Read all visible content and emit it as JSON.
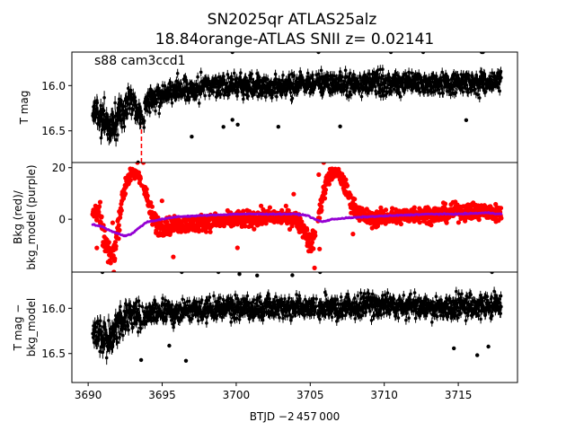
{
  "figure": {
    "title_line1": "SN2025qr  ATLAS25alz",
    "title_line2": "18.84orange-ATLAS SNII z= 0.02141",
    "annotation": "s88 cam3ccd1"
  },
  "colors": {
    "lightcurve": "#000000",
    "background": "#ff0000",
    "bkg_model": "#9400d3",
    "marker_line": "#ff0000"
  },
  "chart_data": [
    {
      "type": "scatter",
      "panel": "top",
      "ylabel": "T mag",
      "xlim": [
        3688.9,
        3719.0
      ],
      "ylim": [
        16.85,
        15.63
      ],
      "inverted_y": true,
      "yticks": [
        16.0,
        16.5
      ],
      "ytick_labels": [
        "16.0",
        "16.5"
      ],
      "vertical_marker_x": 3693.6,
      "series": [
        {
          "x": [
            3690.3,
            3690.8,
            3691.2,
            3691.6,
            3692.0,
            3692.4,
            3692.8,
            3693.2,
            3693.6,
            3694.0,
            3694.5,
            3695.0,
            3696.0,
            3697.0,
            3698.0,
            3699.0,
            3700.0,
            3701.0,
            3702.0,
            3703.0,
            3704.0,
            3705.0,
            3706.0,
            3707.0,
            3708.0,
            3709.0,
            3710.0,
            3711.0,
            3712.0,
            3713.0,
            3714.0,
            3715.0,
            3716.0,
            3717.0,
            3717.9
          ],
          "values": [
            16.25,
            16.35,
            16.4,
            16.45,
            16.35,
            16.3,
            16.15,
            16.2,
            16.35,
            16.2,
            16.15,
            16.1,
            16.05,
            16.05,
            16.0,
            16.0,
            16.0,
            16.0,
            16.0,
            16.0,
            15.98,
            15.98,
            15.98,
            15.98,
            15.98,
            15.98,
            15.98,
            15.98,
            15.98,
            15.98,
            15.98,
            15.97,
            15.97,
            15.97,
            15.97
          ],
          "spread": [
            0.25,
            0.3,
            0.3,
            0.3,
            0.3,
            0.25,
            0.25,
            0.25,
            0.25,
            0.22,
            0.2,
            0.2,
            0.2,
            0.2,
            0.2,
            0.2,
            0.2,
            0.2,
            0.2,
            0.2,
            0.2,
            0.2,
            0.2,
            0.2,
            0.2,
            0.2,
            0.2,
            0.2,
            0.2,
            0.2,
            0.2,
            0.2,
            0.2,
            0.2,
            0.2
          ]
        }
      ]
    },
    {
      "type": "scatter",
      "panel": "middle",
      "ylabel": "Bkg (red)/\nbkg_model (purple)",
      "xlim": [
        3688.9,
        3719.0
      ],
      "ylim": [
        -20.5,
        22
      ],
      "yticks": [
        0,
        20
      ],
      "ytick_labels": [
        "0",
        "20"
      ],
      "series": [
        {
          "name": "Bkg",
          "x": [
            3690.3,
            3690.7,
            3691.0,
            3691.4,
            3691.8,
            3692.2,
            3692.6,
            3693.0,
            3693.4,
            3693.8,
            3694.2,
            3694.6,
            3695.0,
            3696.0,
            3697.0,
            3698.0,
            3699.0,
            3700.0,
            3701.0,
            3702.0,
            3703.0,
            3704.0,
            3704.6,
            3705.0,
            3705.4,
            3705.8,
            3706.2,
            3706.6,
            3707.0,
            3707.4,
            3707.8,
            3708.4,
            3709.0,
            3710.0,
            3711.0,
            3712.0,
            3713.0,
            3714.0,
            3715.0,
            3716.0,
            3717.0,
            3717.9
          ],
          "values": [
            2,
            4,
            -6,
            -14,
            -12,
            5,
            15,
            18,
            17,
            12,
            3,
            -2,
            -3,
            -2,
            -2,
            -1,
            -1,
            0,
            0,
            1,
            1,
            0,
            -4,
            -10,
            -5,
            8,
            16,
            18,
            17,
            12,
            6,
            2,
            0,
            1,
            1,
            2,
            2,
            2,
            3,
            3,
            3,
            2
          ],
          "spread": [
            5,
            7,
            8,
            6,
            6,
            8,
            5,
            3,
            3,
            5,
            6,
            6,
            5,
            5,
            5,
            5,
            5,
            5,
            5,
            5,
            5,
            5,
            6,
            6,
            6,
            6,
            5,
            3,
            4,
            5,
            5,
            5,
            5,
            5,
            5,
            5,
            5,
            5,
            5,
            5,
            5,
            5
          ]
        },
        {
          "name": "bkg_model",
          "x": [
            3690.3,
            3691.0,
            3691.5,
            3692.0,
            3692.5,
            3693.0,
            3693.5,
            3694.0,
            3695.0,
            3696.0,
            3698.0,
            3700.0,
            3702.0,
            3704.0,
            3704.8,
            3705.3,
            3705.8,
            3706.5,
            3707.5,
            3709.0,
            3711.0,
            3713.0,
            3715.0,
            3717.0,
            3717.9
          ],
          "values": [
            -2,
            -3,
            -4.5,
            -5.5,
            -6.5,
            -5.5,
            -3,
            -1,
            0,
            1,
            1.5,
            2,
            2,
            2,
            1.5,
            0,
            -1,
            0,
            0.5,
            1,
            1.5,
            2,
            2,
            2.5,
            2
          ]
        }
      ]
    },
    {
      "type": "scatter",
      "panel": "bottom",
      "ylabel": "T mag −\nbkg_model",
      "xlabel": "BTJD −2 457 000",
      "xlim": [
        3688.9,
        3719.0
      ],
      "ylim": [
        16.82,
        15.6
      ],
      "inverted_y": true,
      "yticks": [
        16.0,
        16.5
      ],
      "ytick_labels": [
        "16.0",
        "16.5"
      ],
      "xticks": [
        3690,
        3695,
        3700,
        3705,
        3710,
        3715
      ],
      "xtick_labels": [
        "3690",
        "3695",
        "3700",
        "3705",
        "3710",
        "3715"
      ],
      "series": [
        {
          "x": [
            3690.3,
            3690.8,
            3691.2,
            3691.6,
            3692.0,
            3692.4,
            3692.8,
            3693.2,
            3693.6,
            3694.0,
            3695.0,
            3696.0,
            3697.0,
            3698.0,
            3699.0,
            3700.0,
            3701.0,
            3702.0,
            3703.0,
            3704.0,
            3705.0,
            3706.0,
            3707.0,
            3708.0,
            3709.0,
            3710.0,
            3711.0,
            3712.0,
            3713.0,
            3714.0,
            3715.0,
            3716.0,
            3717.0,
            3717.9
          ],
          "values": [
            16.25,
            16.3,
            16.35,
            16.3,
            16.2,
            16.15,
            16.1,
            16.05,
            16.1,
            16.05,
            16.05,
            16.05,
            16.02,
            16.02,
            16.0,
            16.0,
            16.0,
            16.0,
            16.0,
            16.0,
            16.0,
            16.0,
            16.0,
            15.98,
            15.98,
            15.98,
            15.98,
            15.98,
            15.98,
            15.98,
            15.98,
            15.97,
            15.97,
            15.97
          ],
          "spread": [
            0.25,
            0.28,
            0.3,
            0.3,
            0.3,
            0.25,
            0.25,
            0.22,
            0.22,
            0.2,
            0.2,
            0.2,
            0.2,
            0.2,
            0.2,
            0.2,
            0.2,
            0.2,
            0.2,
            0.2,
            0.2,
            0.2,
            0.2,
            0.2,
            0.2,
            0.2,
            0.2,
            0.2,
            0.2,
            0.2,
            0.2,
            0.2,
            0.2,
            0.2
          ]
        }
      ]
    }
  ]
}
